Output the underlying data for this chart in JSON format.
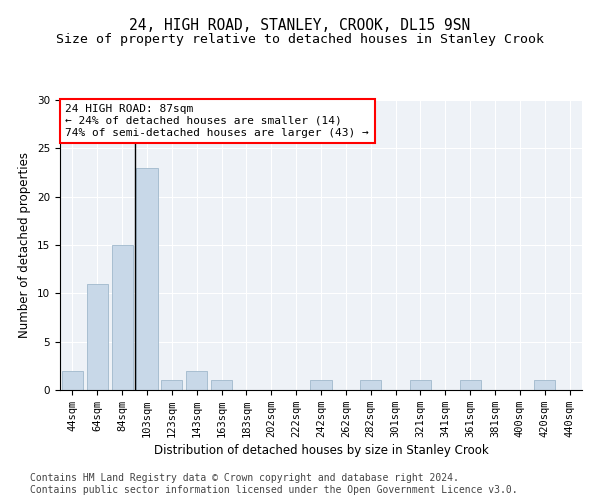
{
  "title": "24, HIGH ROAD, STANLEY, CROOK, DL15 9SN",
  "subtitle": "Size of property relative to detached houses in Stanley Crook",
  "xlabel": "Distribution of detached houses by size in Stanley Crook",
  "ylabel": "Number of detached properties",
  "bar_labels": [
    "44sqm",
    "64sqm",
    "84sqm",
    "103sqm",
    "123sqm",
    "143sqm",
    "163sqm",
    "183sqm",
    "202sqm",
    "222sqm",
    "242sqm",
    "262sqm",
    "282sqm",
    "301sqm",
    "321sqm",
    "341sqm",
    "361sqm",
    "381sqm",
    "400sqm",
    "420sqm",
    "440sqm"
  ],
  "bar_values": [
    2,
    11,
    15,
    23,
    1,
    2,
    1,
    0,
    0,
    0,
    1,
    0,
    1,
    0,
    1,
    0,
    1,
    0,
    0,
    1,
    0
  ],
  "bar_color": "#c8d8e8",
  "bar_edgecolor": "#a0b8cc",
  "vline_x_idx": 2,
  "vline_color": "black",
  "annotation_text": "24 HIGH ROAD: 87sqm\n← 24% of detached houses are smaller (14)\n74% of semi-detached houses are larger (43) →",
  "annotation_box_edgecolor": "red",
  "annotation_fontsize": 8,
  "ylim": [
    0,
    30
  ],
  "yticks": [
    0,
    5,
    10,
    15,
    20,
    25,
    30
  ],
  "footer_line1": "Contains HM Land Registry data © Crown copyright and database right 2024.",
  "footer_line2": "Contains public sector information licensed under the Open Government Licence v3.0.",
  "background_color": "#eef2f7",
  "title_fontsize": 10.5,
  "subtitle_fontsize": 9.5,
  "xlabel_fontsize": 8.5,
  "ylabel_fontsize": 8.5,
  "footer_fontsize": 7,
  "tick_fontsize": 7.5
}
